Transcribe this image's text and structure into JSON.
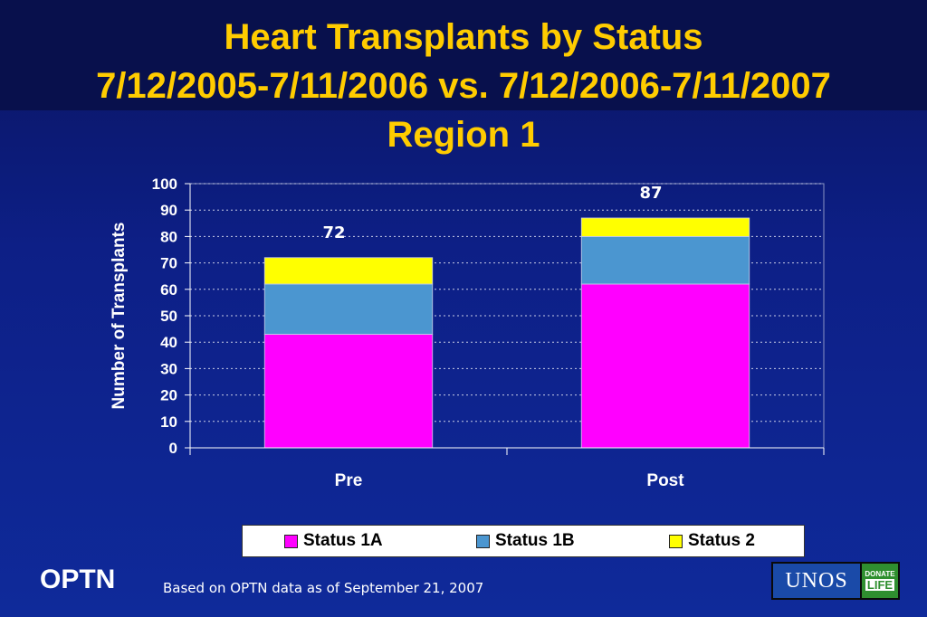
{
  "title": {
    "line1": "Heart Transplants by Status",
    "line2": "7/12/2005-7/11/2006 vs. 7/12/2006-7/11/2007",
    "line3": "Region 1"
  },
  "chart_data": {
    "type": "bar",
    "stacked": true,
    "categories": [
      "Pre",
      "Post"
    ],
    "series": [
      {
        "name": "Status 1A",
        "values": [
          43,
          62
        ],
        "color": "#ff00ff"
      },
      {
        "name": "Status 1B",
        "values": [
          19,
          18
        ],
        "color": "#4b96d0"
      },
      {
        "name": "Status 2",
        "values": [
          10,
          7
        ],
        "color": "#ffff00"
      }
    ],
    "totals": [
      "72",
      "87"
    ],
    "ylabel": "Number of Transplants",
    "ylim": [
      0,
      100
    ],
    "yticks": [
      "0",
      "10",
      "20",
      "30",
      "40",
      "50",
      "60",
      "70",
      "80",
      "90",
      "100"
    ],
    "grid": true,
    "legend_position": "bottom"
  },
  "footer": {
    "brand": "OPTN",
    "note": "Based on OPTN data as of  September  21, 2007",
    "logo_text": "UNOS",
    "logo_badge_top": "DONATE",
    "logo_badge_bottom": "LIFE"
  }
}
